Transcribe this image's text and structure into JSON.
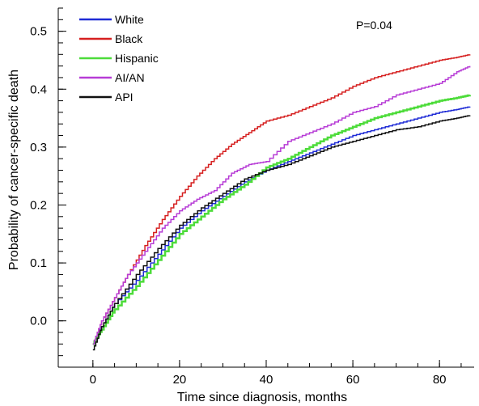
{
  "chart_data": {
    "type": "line",
    "title": "",
    "xlabel": "Time since diagnosis, months",
    "ylabel": "Probability of cancer-specific death",
    "annotation": "P=0.04",
    "xlim": [
      -8,
      88
    ],
    "ylim": [
      -0.08,
      0.54
    ],
    "xticks": [
      0,
      20,
      40,
      60,
      80
    ],
    "yticks": [
      0.0,
      0.1,
      0.2,
      0.3,
      0.4,
      0.5
    ],
    "y_minor_step": 0.02,
    "x_minor_step": 5,
    "grid": false,
    "legend_position": "top-left",
    "series": [
      {
        "name": "White",
        "color": "#1f2bd6",
        "stroke": 1.5,
        "x": [
          0,
          2,
          5,
          10,
          15,
          20,
          25,
          30,
          35,
          40,
          45,
          50,
          55,
          60,
          65,
          70,
          75,
          80,
          84,
          87
        ],
        "y": [
          -0.04,
          -0.01,
          0.03,
          0.07,
          0.115,
          0.16,
          0.19,
          0.215,
          0.24,
          0.26,
          0.275,
          0.29,
          0.305,
          0.32,
          0.33,
          0.34,
          0.35,
          0.36,
          0.365,
          0.37
        ]
      },
      {
        "name": "Black",
        "color": "#d62020",
        "stroke": 1.5,
        "x": [
          0,
          2,
          5,
          8,
          12,
          16,
          20,
          24,
          28,
          32,
          36,
          40,
          45,
          50,
          55,
          60,
          65,
          70,
          75,
          80,
          84,
          87
        ],
        "y": [
          -0.04,
          0.0,
          0.04,
          0.08,
          0.13,
          0.175,
          0.215,
          0.25,
          0.28,
          0.305,
          0.325,
          0.345,
          0.355,
          0.37,
          0.385,
          0.405,
          0.42,
          0.43,
          0.44,
          0.45,
          0.455,
          0.46
        ]
      },
      {
        "name": "Hispanic",
        "color": "#4ddc3a",
        "stroke": 2.5,
        "x": [
          0,
          2,
          5,
          10,
          15,
          20,
          25,
          30,
          35,
          40,
          45,
          50,
          55,
          60,
          65,
          70,
          75,
          80,
          84,
          87
        ],
        "y": [
          -0.04,
          -0.015,
          0.02,
          0.06,
          0.105,
          0.15,
          0.18,
          0.21,
          0.235,
          0.265,
          0.28,
          0.3,
          0.32,
          0.335,
          0.35,
          0.36,
          0.37,
          0.38,
          0.385,
          0.39
        ]
      },
      {
        "name": "AI/AN",
        "color": "#b73cd6",
        "stroke": 1.5,
        "x": [
          0,
          2,
          5,
          8,
          12,
          16,
          20,
          24,
          28,
          32,
          36,
          40,
          45,
          50,
          55,
          60,
          65,
          70,
          75,
          80,
          84,
          87
        ],
        "y": [
          -0.04,
          0.0,
          0.04,
          0.08,
          0.12,
          0.16,
          0.19,
          0.21,
          0.225,
          0.255,
          0.27,
          0.275,
          0.31,
          0.325,
          0.34,
          0.36,
          0.37,
          0.39,
          0.4,
          0.41,
          0.43,
          0.44
        ]
      },
      {
        "name": "API",
        "color": "#111111",
        "stroke": 1.5,
        "x": [
          0,
          2,
          5,
          10,
          15,
          20,
          25,
          30,
          35,
          40,
          45,
          50,
          55,
          60,
          65,
          70,
          75,
          80,
          84,
          87
        ],
        "y": [
          -0.05,
          -0.01,
          0.03,
          0.08,
          0.125,
          0.165,
          0.195,
          0.22,
          0.245,
          0.26,
          0.27,
          0.285,
          0.3,
          0.31,
          0.32,
          0.33,
          0.335,
          0.345,
          0.35,
          0.355
        ]
      }
    ]
  }
}
